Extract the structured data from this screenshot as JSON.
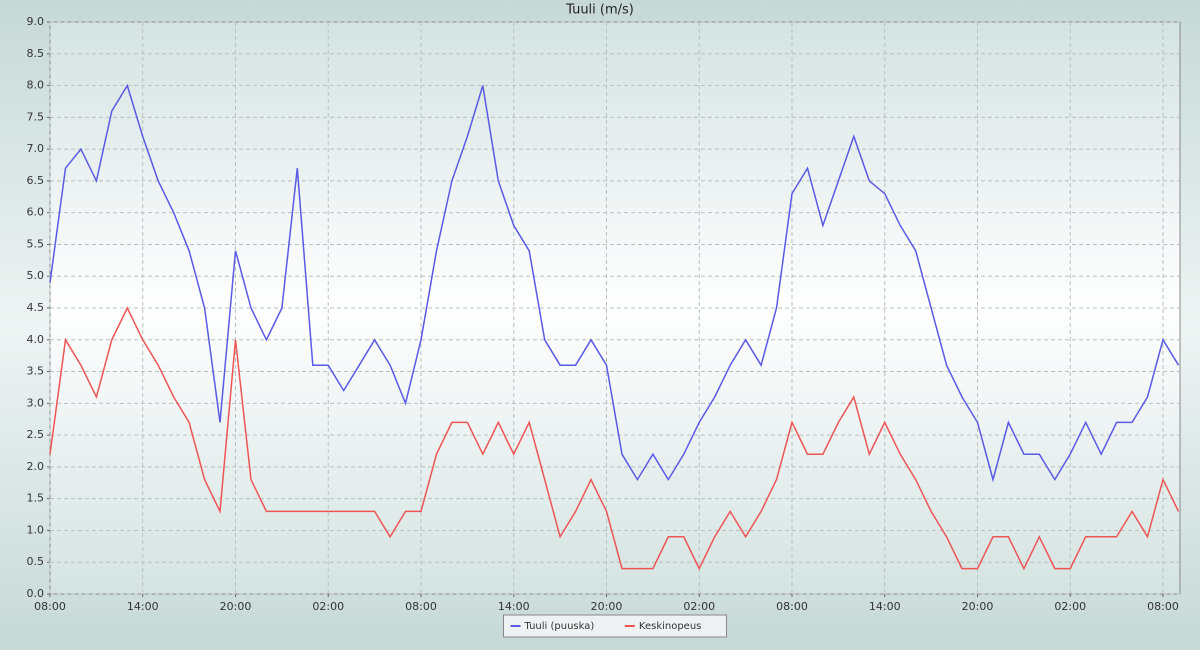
{
  "chart_data": {
    "type": "line",
    "title": "Tuuli (m/s)",
    "x": [
      0,
      1,
      2,
      3,
      4,
      5,
      6,
      7,
      8,
      9,
      10,
      11,
      12,
      13,
      14,
      15,
      16,
      17,
      18,
      19,
      20,
      21,
      22,
      23,
      24,
      25,
      26,
      27,
      28,
      29,
      30,
      31,
      32,
      33,
      34,
      35,
      36,
      37,
      38,
      39,
      40,
      41,
      42,
      43,
      44,
      45,
      46,
      47,
      48,
      49,
      50,
      51,
      52,
      53,
      54,
      55,
      56,
      57,
      58,
      59,
      60,
      61,
      62,
      63,
      64,
      65,
      66,
      67,
      68,
      69,
      70,
      71,
      72,
      73
    ],
    "series": [
      {
        "name": "Tuuli (puuska)",
        "color": "#5a5ae6",
        "values": [
          4.9,
          6.7,
          7.0,
          6.5,
          7.6,
          8.0,
          7.2,
          6.5,
          6.0,
          5.4,
          4.5,
          2.7,
          5.4,
          4.5,
          4.0,
          4.5,
          6.7,
          3.6,
          3.6,
          3.2,
          3.6,
          4.0,
          3.6,
          3.0,
          4.0,
          5.4,
          6.5,
          7.2,
          8.0,
          6.5,
          5.8,
          5.4,
          4.0,
          3.6,
          3.6,
          4.0,
          3.6,
          2.2,
          1.8,
          2.2,
          1.8,
          2.2,
          2.7,
          3.1,
          3.6,
          4.0,
          3.6,
          4.5,
          6.3,
          6.7,
          5.8,
          6.5,
          7.2,
          6.5,
          6.3,
          5.8,
          5.4,
          4.5,
          3.6,
          3.1,
          2.7,
          1.8,
          2.7,
          2.2,
          2.2,
          1.8,
          2.2,
          2.7,
          2.2,
          2.7,
          2.7,
          3.1,
          4.0,
          3.6
        ]
      },
      {
        "name": "Keskinopeus",
        "color": "#ee5555",
        "values": [
          2.2,
          4.0,
          3.6,
          3.1,
          4.0,
          4.5,
          4.0,
          3.6,
          3.1,
          2.7,
          1.8,
          1.3,
          4.0,
          1.8,
          1.3,
          1.3,
          1.3,
          1.3,
          1.3,
          1.3,
          1.3,
          1.3,
          0.9,
          1.3,
          1.3,
          2.2,
          2.7,
          2.7,
          2.2,
          2.7,
          2.2,
          2.7,
          1.8,
          0.9,
          1.3,
          1.8,
          1.3,
          0.4,
          0.4,
          0.4,
          0.9,
          0.9,
          0.4,
          0.9,
          1.3,
          0.9,
          1.3,
          1.8,
          2.7,
          2.2,
          2.2,
          2.7,
          3.1,
          2.2,
          2.7,
          2.2,
          1.8,
          1.3,
          0.9,
          0.4,
          0.4,
          0.9,
          0.9,
          0.4,
          0.9,
          0.4,
          0.4,
          0.9,
          0.9,
          0.9,
          1.3,
          0.9,
          1.8,
          1.3
        ]
      }
    ],
    "xlim": [
      0,
      73.1
    ],
    "xticks": [
      {
        "value": 0,
        "label": "08:00"
      },
      {
        "value": 6,
        "label": "14:00"
      },
      {
        "value": 12,
        "label": "20:00"
      },
      {
        "value": 18,
        "label": "02:00"
      },
      {
        "value": 24,
        "label": "08:00"
      },
      {
        "value": 30,
        "label": "14:00"
      },
      {
        "value": 36,
        "label": "20:00"
      },
      {
        "value": 42,
        "label": "02:00"
      },
      {
        "value": 48,
        "label": "08:00"
      },
      {
        "value": 54,
        "label": "14:00"
      },
      {
        "value": 60,
        "label": "20:00"
      },
      {
        "value": 66,
        "label": "02:00"
      },
      {
        "value": 72,
        "label": "08:00"
      }
    ],
    "ylim": [
      0,
      9
    ],
    "yticks": [
      {
        "value": 0,
        "label": "0.0"
      },
      {
        "value": 0.5,
        "label": "0.5"
      },
      {
        "value": 1,
        "label": "1.0"
      },
      {
        "value": 1.5,
        "label": "1.5"
      },
      {
        "value": 2,
        "label": "2.0"
      },
      {
        "value": 2.5,
        "label": "2.5"
      },
      {
        "value": 3,
        "label": "3.0"
      },
      {
        "value": 3.5,
        "label": "3.5"
      },
      {
        "value": 4,
        "label": "4.0"
      },
      {
        "value": 4.5,
        "label": "4.5"
      },
      {
        "value": 5,
        "label": "5.0"
      },
      {
        "value": 5.5,
        "label": "5.5"
      },
      {
        "value": 6,
        "label": "6.0"
      },
      {
        "value": 6.5,
        "label": "6.5"
      },
      {
        "value": 7,
        "label": "7.0"
      },
      {
        "value": 7.5,
        "label": "7.5"
      },
      {
        "value": 8,
        "label": "8.0"
      },
      {
        "value": 8.5,
        "label": "8.5"
      },
      {
        "value": 9,
        "label": "9.0"
      }
    ],
    "grid": true,
    "legend": "bottom"
  }
}
